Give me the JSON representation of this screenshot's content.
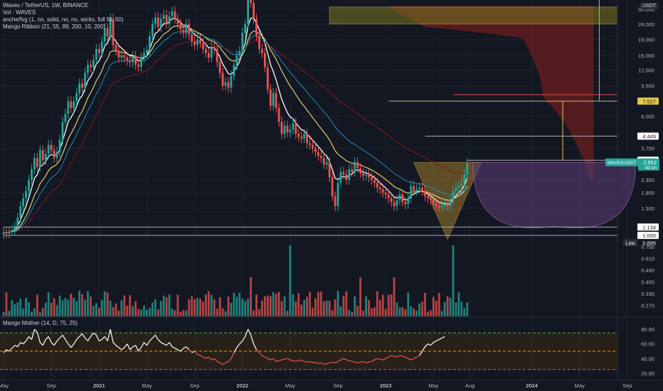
{
  "legend": {
    "symbol_line": "Waves / TetherUS, 1W, BINANCE",
    "vol_line": "Vol · WAVES",
    "anche_line": "anche/fvg (1, no, solid, no, no, wicks, full fill, 50)",
    "ribbon_line": "Mango Ribbon (21, 55, 89, 200, 10, 200)"
  },
  "currency": "USDT",
  "oscillator_legend": "Mango Mother (14, D, 75, 25)",
  "colors": {
    "background": "#131722",
    "up": "#26a69a",
    "down": "#ef5350",
    "ribbon_white": "#ffffff",
    "ribbon_yellow": "#f5e07a",
    "ribbon_cyan": "#2196c9",
    "ribbon_darkred": "#8b1a1a",
    "cloud": "#6b1e1e",
    "fvg_box": "#7a7520",
    "cup": "#5a3a73",
    "triangle": "#9c7a2a",
    "level_line": "#c9b458",
    "oscillator_upper": "#4caf50",
    "oscillator_lower": "#ef5350",
    "oscillator_mid": "#ff9800"
  },
  "chart_data": {
    "type": "candlestick",
    "price_scale": "log",
    "ylim": [
      0.89,
      33
    ],
    "y_ticks": [
      "30.000",
      "24.000",
      "19.000",
      "15.000",
      "12.000",
      "9.500",
      "7.527",
      "6.000",
      "4.449",
      "3.700",
      "3.097",
      "2.952",
      "2.300",
      "1.900",
      "1.500",
      "1.134",
      "1.000",
      "0.895"
    ],
    "price_label_values": [
      30,
      24,
      19,
      15,
      12,
      9.5,
      6,
      3.7,
      2.3,
      1.9,
      1.5
    ],
    "highlight_labels": [
      {
        "text": "7.527",
        "value": 7.527,
        "style": "level"
      },
      {
        "text": "4.449",
        "value": 4.449,
        "style": "white"
      },
      {
        "text": "3.097",
        "value": 3.097,
        "style": "white"
      },
      {
        "text": "1.134",
        "value": 1.134,
        "style": "white"
      },
      {
        "text": "1.000",
        "value": 1.0,
        "style": "white"
      },
      {
        "text": "0.895",
        "value": 0.895,
        "style": "low",
        "tag": "Low"
      }
    ],
    "last_price": {
      "symbol": "WAVESUSDT",
      "value": "2.952",
      "countdown": "4d 1h"
    },
    "x_labels": [
      "May",
      "Sep",
      "2021",
      "May",
      "Sep",
      "2022",
      "May",
      "Sep",
      "2023",
      "May",
      "Aug",
      "2024",
      "May",
      "Sep"
    ],
    "x_label_bars": [
      0,
      17,
      34,
      51,
      68,
      85,
      102,
      119,
      136,
      153,
      166,
      188,
      205,
      222
    ],
    "weekly_close": [
      1.05,
      1.03,
      1.06,
      1.08,
      1.15,
      1.3,
      1.55,
      1.75,
      1.95,
      2.3,
      2.7,
      3.2,
      2.8,
      3.6,
      3.1,
      3.4,
      3.9,
      3.6,
      3.2,
      3.5,
      4.2,
      5.5,
      6.2,
      7.5,
      6.8,
      7.5,
      8.5,
      9.8,
      9.2,
      11.5,
      13.0,
      12.5,
      14.0,
      16.5,
      15.5,
      18.5,
      22.5,
      20.0,
      26.0,
      17.5,
      16.0,
      14.5,
      15.0,
      14.5,
      13.8,
      13.5,
      14.8,
      13.0,
      12.6,
      14.5,
      15.5,
      16.2,
      20.0,
      24.0,
      26.5,
      23.0,
      26.0,
      27.5,
      24.0,
      27.0,
      29.0,
      26.0,
      24.0,
      22.0,
      21.0,
      24.0,
      20.5,
      18.5,
      17.5,
      19.0,
      18.0,
      16.5,
      15.5,
      14.5,
      17.0,
      16.5,
      13.5,
      11.5,
      9.5,
      10.0,
      9.2,
      11.0,
      13.0,
      15.0,
      16.0,
      21.0,
      24.0,
      37.0,
      33.0,
      26.0,
      20.0,
      16.5,
      15.5,
      12.5,
      9.0,
      7.0,
      8.5,
      6.8,
      5.5,
      4.6,
      5.2,
      4.7,
      4.9,
      5.4,
      4.6,
      4.4,
      4.3,
      4.6,
      4.0,
      3.9,
      3.7,
      3.5,
      3.3,
      3.2,
      2.9,
      3.0,
      2.4,
      1.8,
      1.55,
      2.2,
      2.6,
      2.5,
      2.3,
      2.7,
      2.6,
      3.0,
      2.75,
      2.55,
      2.45,
      2.5,
      2.4,
      2.3,
      2.2,
      2.05,
      2.0,
      1.9,
      1.85,
      1.75,
      1.65,
      1.55,
      1.7,
      1.85,
      1.65,
      1.6,
      1.75,
      2.1,
      1.95,
      2.0,
      2.05,
      1.95,
      1.8,
      1.75,
      1.7,
      1.6,
      1.55,
      1.52,
      1.56,
      1.6,
      1.55,
      1.7,
      1.95,
      2.05,
      2.1,
      2.2,
      2.5,
      2.95
    ],
    "levels": [
      {
        "name": "red_line",
        "value": 8.3,
        "bar_from": 160,
        "bar_to": 229
      },
      {
        "name": "level_7527",
        "value": 7.527,
        "bar_from": 137,
        "bar_to": 999
      },
      {
        "name": "level_4449",
        "value": 4.449,
        "bar_from": 150,
        "bar_to": 999
      },
      {
        "name": "level_3097",
        "value": 3.097,
        "bar_from": 165,
        "bar_to": 999
      },
      {
        "name": "level_1134",
        "value": 1.134,
        "bar_from": 0,
        "bar_to": 999
      },
      {
        "name": "level_1000",
        "value": 1.0,
        "bar_from": 0,
        "bar_to": 999
      }
    ],
    "fvg_box": {
      "top": 31.0,
      "bottom": 24.0,
      "bar_from": 116,
      "bar_to": 999
    },
    "triangle": {
      "top": 3.0,
      "apex": 0.94,
      "bar_from": 146,
      "bar_to": 170,
      "apex_bar": 158
    },
    "cup": {
      "top": 3.0,
      "bottom": 1.15,
      "bar_from": 167,
      "bar_to": 225
    },
    "volume_ticks": [
      "0.750",
      "0.610",
      "0.490",
      "0.400",
      "0.330",
      "0.270"
    ],
    "oscillator": {
      "ticks": [
        "80.00",
        "60.00",
        "40.00",
        "20.00"
      ],
      "levels": {
        "upper": 75,
        "mid": 50,
        "lower": 25
      },
      "values": [
        48,
        52,
        50,
        54,
        58,
        56,
        62,
        60,
        64,
        70,
        66,
        80,
        76,
        62,
        58,
        66,
        70,
        62,
        58,
        64,
        68,
        72,
        66,
        60,
        55,
        60,
        66,
        70,
        74,
        68,
        64,
        70,
        75,
        72,
        64,
        66,
        70,
        64,
        80,
        62,
        58,
        55,
        52,
        55,
        60,
        52,
        56,
        58,
        50,
        55,
        62,
        58,
        64,
        68,
        72,
        66,
        62,
        60,
        58,
        62,
        56,
        54,
        52,
        50,
        54,
        56,
        52,
        48,
        50,
        46,
        44,
        42,
        40,
        42,
        38,
        40,
        36,
        34,
        32,
        34,
        36,
        40,
        48,
        55,
        60,
        64,
        70,
        80,
        72,
        60,
        52,
        48,
        44,
        42,
        40,
        38,
        40,
        36,
        37,
        38,
        39,
        40,
        38,
        37,
        36,
        38,
        37,
        36,
        35,
        36,
        34,
        35,
        33,
        34,
        32,
        33,
        34,
        35,
        34,
        36,
        38,
        40,
        38,
        37,
        36,
        35,
        34,
        35,
        36,
        34,
        35,
        36,
        38,
        40,
        39,
        38,
        40,
        42,
        44,
        43,
        42,
        44,
        43,
        42,
        40,
        38,
        40,
        42,
        44,
        50,
        56,
        60,
        58,
        62,
        64,
        66,
        68,
        70
      ]
    }
  }
}
